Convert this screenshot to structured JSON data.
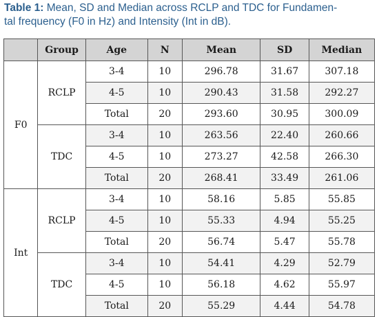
{
  "caption": {
    "label": "Table 1:",
    "line1": " Mean, SD and Median across RCLP and TDC for Fundamen-",
    "line2": "tal frequency (F0 in Hz) and Intensity (Int in dB)."
  },
  "table": {
    "headers": [
      "",
      "Group",
      "Age",
      "N",
      "Mean",
      "SD",
      "Median"
    ],
    "measures": [
      {
        "name": "F0",
        "groups": [
          {
            "name": "RCLP",
            "rows": [
              {
                "age": "3-4",
                "n": "10",
                "mean": "296.78",
                "sd": "31.67",
                "median": "307.18"
              },
              {
                "age": "4-5",
                "n": "10",
                "mean": "290.43",
                "sd": "31.58",
                "median": "292.27"
              },
              {
                "age": "Total",
                "n": "20",
                "mean": "293.60",
                "sd": "30.95",
                "median": "300.09"
              }
            ]
          },
          {
            "name": "TDC",
            "rows": [
              {
                "age": "3-4",
                "n": "10",
                "mean": "263.56",
                "sd": "22.40",
                "median": "260.66"
              },
              {
                "age": "4-5",
                "n": "10",
                "mean": "273.27",
                "sd": "42.58",
                "median": "266.30"
              },
              {
                "age": "Total",
                "n": "20",
                "mean": "268.41",
                "sd": "33.49",
                "median": "261.06"
              }
            ]
          }
        ]
      },
      {
        "name": "Int",
        "groups": [
          {
            "name": "RCLP",
            "rows": [
              {
                "age": "3-4",
                "n": "10",
                "mean": "58.16",
                "sd": "5.85",
                "median": "55.85"
              },
              {
                "age": "4-5",
                "n": "10",
                "mean": "55.33",
                "sd": "4.94",
                "median": "55.25"
              },
              {
                "age": "Total",
                "n": "20",
                "mean": "56.74",
                "sd": "5.47",
                "median": "55.78"
              }
            ]
          },
          {
            "name": "TDC",
            "rows": [
              {
                "age": "3-4",
                "n": "10",
                "mean": "54.41",
                "sd": "4.29",
                "median": "52.79"
              },
              {
                "age": "4-5",
                "n": "10",
                "mean": "56.18",
                "sd": "4.62",
                "median": "55.97"
              },
              {
                "age": "Total",
                "n": "20",
                "mean": "55.29",
                "sd": "4.44",
                "median": "54.78"
              }
            ]
          }
        ]
      }
    ]
  }
}
